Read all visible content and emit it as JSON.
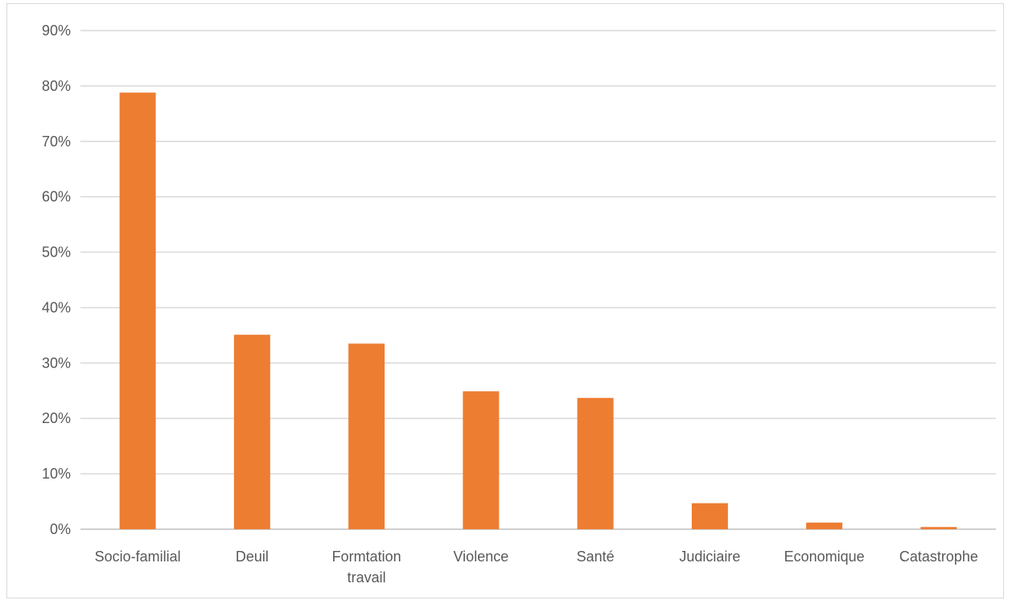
{
  "chart_data": {
    "type": "bar",
    "categories": [
      "Socio-familial",
      "Deuil",
      "Formtation travail",
      "Violence",
      "Santé",
      "Judiciaire",
      "Economique",
      "Catastrophe"
    ],
    "category_lines": [
      [
        "Socio-familial"
      ],
      [
        "Deuil"
      ],
      [
        "Formtation",
        "travail"
      ],
      [
        "Violence"
      ],
      [
        "Santé"
      ],
      [
        "Judiciaire"
      ],
      [
        "Economique"
      ],
      [
        "Catastrophe"
      ]
    ],
    "values": [
      78.8,
      35.1,
      33.5,
      24.9,
      23.7,
      4.7,
      1.2,
      0.4
    ],
    "yticks": [
      "0%",
      "10%",
      "20%",
      "30%",
      "40%",
      "50%",
      "60%",
      "70%",
      "80%",
      "90%"
    ],
    "ylim": [
      0,
      90
    ],
    "title": "",
    "xlabel": "",
    "ylabel": "",
    "grid": true,
    "legend": "none",
    "bar_color": "#ED7D31",
    "grid_color": "#d9d9d9",
    "axis_color": "#bfbfbf",
    "text_color": "#595959"
  }
}
